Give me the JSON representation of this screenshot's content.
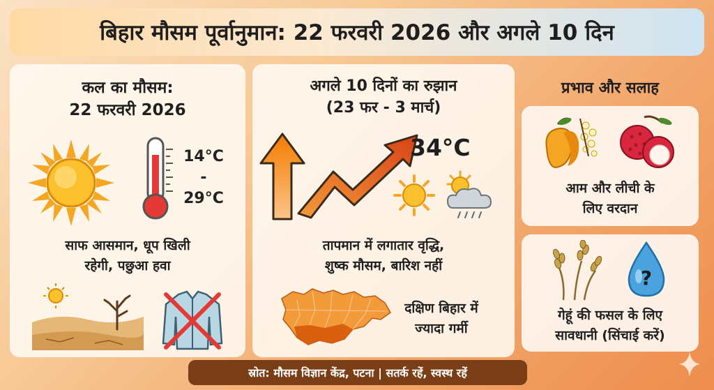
{
  "header": {
    "title": "बिहार मौसम पूर्वानुमान: 22 फरवरी 2026 और अगले 10 दिन"
  },
  "tomorrow": {
    "heading_line1": "कल का मौसम:",
    "heading_line2": "22 फरवरी 2026",
    "temp_min": "14°C",
    "temp_sep": "-",
    "temp_max": "29°C",
    "desc_line1": "साफ आसमान, धूप खिली",
    "desc_line2": "रहेगी, पछुआ हवा",
    "icons": [
      "sun-icon",
      "thermometer-icon",
      "dry-landscape-icon",
      "no-jacket-icon"
    ]
  },
  "trend": {
    "heading_line1": "अगले 10 दिनों का रुझान",
    "heading_line2": "(23 फर - 3 मार्च)",
    "peak_temp": "34°C",
    "desc_line1": "तापमान में लगातार वृद्धि,",
    "desc_line2": "शुष्क मौसम, बारिश नहीं",
    "region_line1": "दक्षिण बिहार में",
    "region_line2": "ज्यादा गर्मी",
    "icons": [
      "up-arrow-icon",
      "trend-arrow-icon",
      "sun-icon",
      "sun-cloud-rain-icon",
      "bihar-map-icon"
    ]
  },
  "impact": {
    "heading": "प्रभाव और सलाह",
    "card1_line1": "आम और लीची के",
    "card1_line2": "लिए वरदान",
    "card2_line1": "गेहूं की फसल के लिए",
    "card2_line2": "सावधानी (सिंचाई करें)",
    "icons": [
      "mango-icon",
      "litchi-icon",
      "wheat-icon",
      "water-drop-question-icon"
    ]
  },
  "footer": {
    "text": "स्रोत: मौसम विज्ञान केंद्र, पटना | सतर्क रहें, स्वस्थ रहें"
  }
}
